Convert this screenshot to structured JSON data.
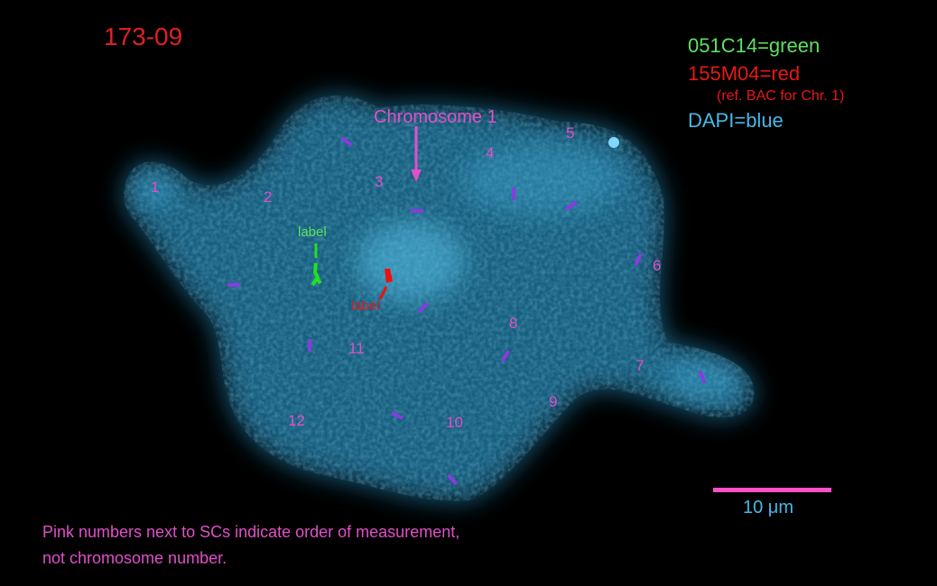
{
  "title": "173-09",
  "legend": {
    "green": "051C14=green",
    "red": "155M04=red",
    "red_note": "(ref. BAC for Chr. 1)",
    "blue": "DAPI=blue"
  },
  "chromosome_label": "Chromosome 1",
  "signal_labels": {
    "green": "label",
    "red": "label"
  },
  "sc_numbers": [
    "1",
    "2",
    "3",
    "4",
    "5",
    "6",
    "7",
    "8",
    "9",
    "10",
    "11",
    "12"
  ],
  "scale_bar": {
    "label": "10 μm"
  },
  "caption": {
    "line1": "Pink numbers next to SCs indicate order of measurement,",
    "line2": "not chromosome number."
  },
  "colors": {
    "title": "#e02020",
    "green": "#5ee060",
    "red": "#e81818",
    "blue": "#48b8e8",
    "pink": "#e050c8",
    "marks": "#8a3ae0"
  }
}
